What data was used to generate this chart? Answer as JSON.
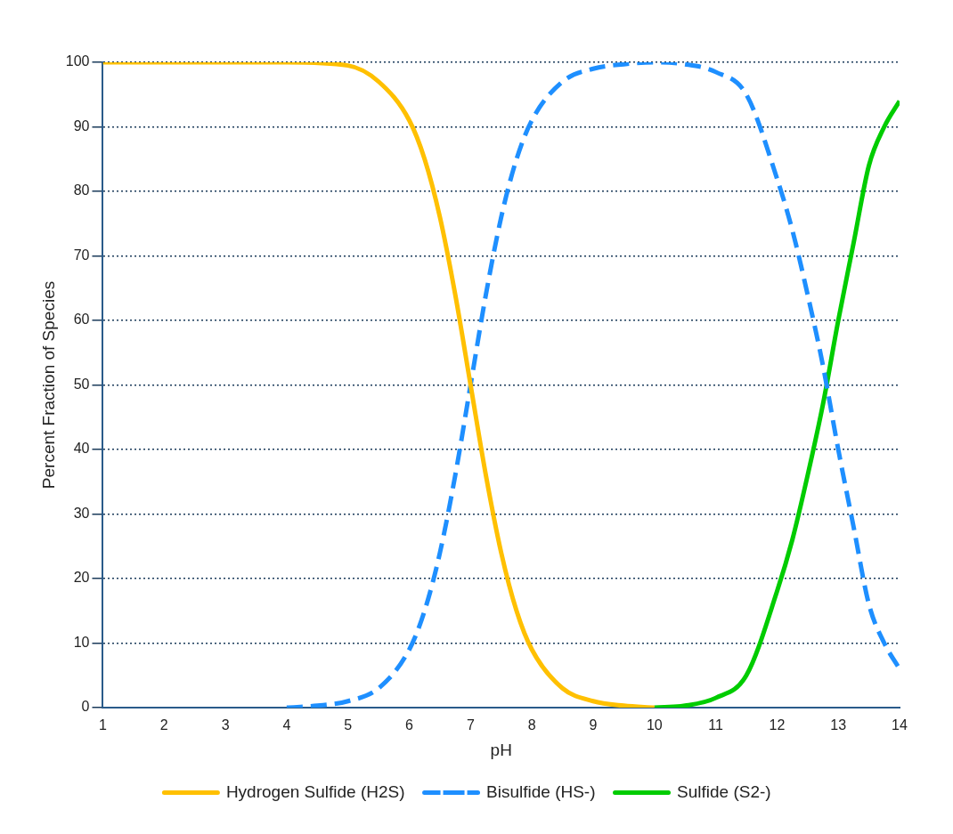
{
  "chart_data": {
    "type": "line",
    "xlabel": "pH",
    "ylabel": "Percent Fraction of Species",
    "xlim": [
      1,
      14
    ],
    "xticks": [
      1,
      2,
      3,
      4,
      5,
      6,
      7,
      8,
      9,
      10,
      11,
      12,
      13,
      14
    ],
    "ylim": [
      0,
      100
    ],
    "yticks": [
      0,
      10,
      20,
      30,
      40,
      50,
      60,
      70,
      80,
      90,
      100
    ],
    "grid": "y",
    "legend": "bottom",
    "marker": "none",
    "series": [
      {
        "name": "Hydrogen Sulfide (H2S)",
        "color": "#ffc000",
        "line_style": "solid",
        "x": [
          1,
          2,
          3,
          4,
          5,
          5.5,
          6,
          6.25,
          6.5,
          6.75,
          7,
          7.25,
          7.5,
          7.75,
          8,
          8.5,
          9,
          9.5,
          10
        ],
        "values": [
          100,
          100,
          100,
          100,
          99.5,
          97,
          91,
          85,
          76,
          64,
          50,
          36,
          24,
          15,
          9,
          3,
          1,
          0.3,
          0
        ]
      },
      {
        "name": "Bisulfide (HS-)",
        "color": "#1e8fff",
        "line_style": "dashed",
        "x": [
          4,
          4.5,
          5,
          5.5,
          6,
          6.25,
          6.5,
          6.75,
          7,
          7.25,
          7.5,
          7.75,
          8,
          8.5,
          9,
          9.5,
          10,
          10.5,
          11,
          11.5,
          12,
          12.25,
          12.5,
          12.75,
          13,
          13.25,
          13.5,
          13.75,
          14
        ],
        "values": [
          0,
          0.3,
          1,
          3,
          9,
          15,
          24,
          36,
          50,
          64,
          76,
          85,
          91,
          97,
          99,
          99.7,
          100,
          99.7,
          98.5,
          95,
          82,
          74,
          64,
          53,
          40,
          28,
          16,
          10,
          6
        ]
      },
      {
        "name": "Sulfide (S2-)",
        "color": "#00cc00",
        "line_style": "solid",
        "x": [
          10,
          10.5,
          11,
          11.5,
          12,
          12.25,
          12.5,
          12.75,
          13,
          13.25,
          13.5,
          13.75,
          14
        ],
        "values": [
          0,
          0.3,
          1.5,
          5,
          18,
          26,
          36,
          47,
          60,
          72,
          84,
          90,
          94
        ]
      }
    ]
  }
}
